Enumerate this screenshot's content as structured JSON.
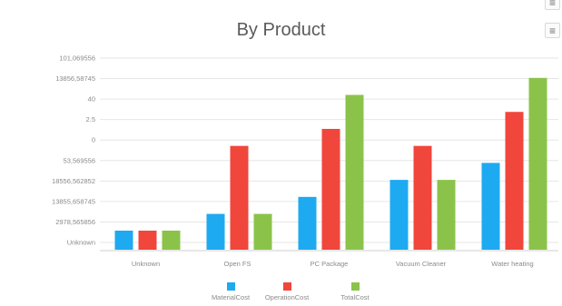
{
  "toolbar": {
    "menu_icon_glyph": "≡"
  },
  "chart_data": {
    "type": "bar",
    "title": "By Product",
    "xlabel": "",
    "ylabel": "",
    "y_tick_labels": [
      "101,069556",
      "13856,58745",
      "40",
      "2.5",
      "0",
      "53,569556",
      "18556,562852",
      "13855,658745",
      "2978,565856",
      "Unknown"
    ],
    "categories": [
      "Unknown",
      "Open FS",
      "PC Package",
      "Vacuum Cleaner",
      "Water heating"
    ],
    "series": [
      {
        "name": "MaterialCost",
        "color": "#1eaaf1",
        "values": [
          1,
          2,
          3,
          4,
          5
        ]
      },
      {
        "name": "OperationCost",
        "color": "#f0463c",
        "values": [
          1,
          6,
          7,
          6,
          8
        ]
      },
      {
        "name": "TotalCost",
        "color": "#8bc34a",
        "values": [
          1,
          2,
          9,
          4,
          10
        ]
      }
    ],
    "value_scale_note": "",
    "ylim": [
      0,
      10
    ],
    "grid": true,
    "legend_position": "bottom"
  }
}
